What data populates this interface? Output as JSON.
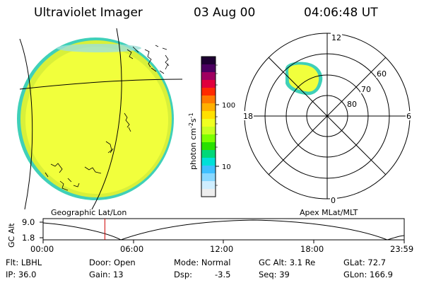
{
  "header": {
    "instrument": "Ultraviolet Imager",
    "date": "03 Aug 00",
    "time": "04:06:48 UT"
  },
  "colorbar": {
    "label": "photon cm",
    "label_sup1": "-2",
    "label_mid": "s",
    "label_sup2": "-1",
    "tick_100": "100",
    "tick_10": "10",
    "colors": [
      "#1e0032",
      "#4b0060",
      "#a00060",
      "#e0003c",
      "#ff2a00",
      "#ff7a00",
      "#ffb000",
      "#ffe000",
      "#f0ff20",
      "#c8ff20",
      "#7cff00",
      "#28e000",
      "#00d878",
      "#00e0d8",
      "#40c0ff",
      "#8ad8ff",
      "#cfeeff",
      "#eeeeee"
    ]
  },
  "polar_plot": {
    "label_12": "12",
    "label_6": "6",
    "label_18": "18",
    "label_0": "0",
    "lat_60": "60",
    "lat_70": "70",
    "lat_80": "80"
  },
  "timeline": {
    "left_label": "Geographic Lat/Lon",
    "right_label": "Apex MLat/MLT",
    "y_axis_label": "GC Alt",
    "y_top": "9.0",
    "y_bottom": "1.8",
    "x_ticks": [
      "00:00",
      "06:00",
      "12:00",
      "18:00",
      "23:59"
    ],
    "current_time_fraction": 0.171
  },
  "info": {
    "flt": "Flt: LBHL",
    "ip": "IP: 36.0",
    "door": "Door: Open",
    "gain": "Gain: 13",
    "mode": "Mode: Normal",
    "dsp_label": "Dsp:",
    "dsp_value": "-3.5",
    "gc_alt": "GC Alt: 3.1 Re",
    "seq": "Seq: 39",
    "glat": "GLat:  72.7",
    "glon": "GLon: 166.9"
  }
}
